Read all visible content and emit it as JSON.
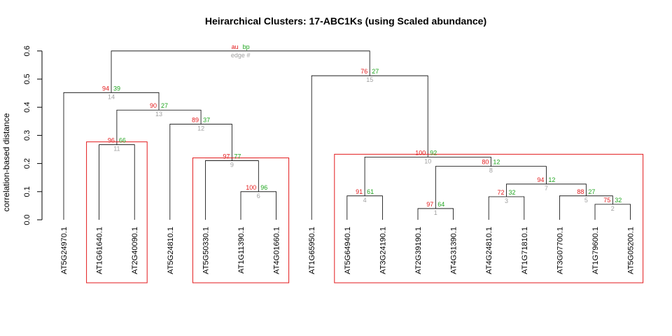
{
  "chart_data": {
    "type": "dendrogram",
    "title": "Heirarchical Clusters: 17-ABC1Ks (using Scaled abundance)",
    "ylabel": "correlation-based distance",
    "ylim": [
      0,
      0.65
    ],
    "yticks": [
      "0.0",
      "0.1",
      "0.2",
      "0.3",
      "0.4",
      "0.5",
      "0.6"
    ],
    "legend": {
      "au": "au",
      "bp": "bp",
      "edge": "edge #"
    },
    "leaves": [
      "AT5G24970.1",
      "AT1G61640.1",
      "AT2G40090.1",
      "AT5G24810.1",
      "AT5G50330.1",
      "AT1G11390.1",
      "AT4G01660.1",
      "AT1G65950.1",
      "AT5G64940.1",
      "AT3G24190.1",
      "AT2G39190.1",
      "AT4G31390.1",
      "AT4G24810.1",
      "AT1G71810.1",
      "AT3G07700.1",
      "AT1G79600.1",
      "AT5G05200.1"
    ],
    "merges": [
      {
        "id": "m1",
        "left": "L10",
        "right": "L11",
        "height": 0.04,
        "au": "97",
        "bp": "64",
        "edge": "1"
      },
      {
        "id": "m2",
        "left": "L15",
        "right": "L16",
        "height": 0.055,
        "au": "75",
        "bp": "32",
        "edge": "2"
      },
      {
        "id": "m3",
        "left": "L12",
        "right": "L13",
        "height": 0.082,
        "au": "72",
        "bp": "32",
        "edge": "3"
      },
      {
        "id": "m4",
        "left": "L8",
        "right": "L9",
        "height": 0.085,
        "au": "91",
        "bp": "61",
        "edge": "4"
      },
      {
        "id": "m5",
        "left": "L14",
        "right": "m2",
        "height": 0.085,
        "au": "88",
        "bp": "27",
        "edge": "5"
      },
      {
        "id": "m6",
        "left": "L5",
        "right": "L6",
        "height": 0.1,
        "au": "100",
        "bp": "96",
        "edge": "6"
      },
      {
        "id": "m7",
        "left": "m3",
        "right": "m5",
        "height": 0.127,
        "au": "94",
        "bp": "12",
        "edge": "7"
      },
      {
        "id": "m8",
        "left": "m1",
        "right": "m7",
        "height": 0.19,
        "au": "80",
        "bp": "12",
        "edge": "8"
      },
      {
        "id": "m9",
        "left": "L4",
        "right": "m6",
        "height": 0.21,
        "au": "97",
        "bp": "77",
        "edge": "9"
      },
      {
        "id": "m10",
        "left": "m4",
        "right": "m8",
        "height": 0.223,
        "au": "100",
        "bp": "92",
        "edge": "10"
      },
      {
        "id": "m11",
        "left": "L1",
        "right": "L2",
        "height": 0.267,
        "au": "96",
        "bp": "66",
        "edge": "11"
      },
      {
        "id": "m12",
        "left": "L3",
        "right": "m9",
        "height": 0.34,
        "au": "89",
        "bp": "37",
        "edge": "12"
      },
      {
        "id": "m13",
        "left": "m11",
        "right": "m12",
        "height": 0.39,
        "au": "90",
        "bp": "27",
        "edge": "13"
      },
      {
        "id": "m14",
        "left": "L0",
        "right": "m13",
        "height": 0.452,
        "au": "94",
        "bp": "39",
        "edge": "14"
      },
      {
        "id": "m15",
        "left": "L7",
        "right": "m10",
        "height": 0.512,
        "au": "76",
        "bp": "27",
        "edge": "15"
      },
      {
        "id": "m16",
        "left": "m14",
        "right": "m15",
        "height": 0.6,
        "au": "au",
        "bp": "bp",
        "edge": "edge #"
      }
    ],
    "clusters": [
      {
        "from": 1,
        "to": 2
      },
      {
        "from": 4,
        "to": 6
      },
      {
        "from": 8,
        "to": 16
      }
    ],
    "colors": {
      "au": "#e31a1c",
      "bp": "#1fa51f",
      "edge": "#a0a0a0",
      "cluster_box": "#e31a1c",
      "branch": "#000000"
    },
    "grid": false
  }
}
